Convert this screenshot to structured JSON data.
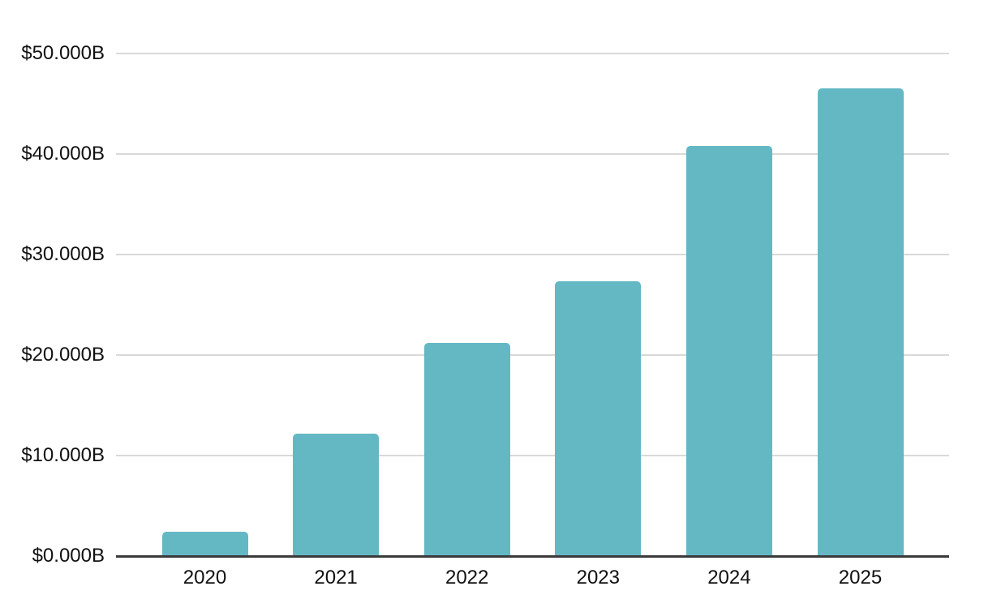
{
  "chart_data": {
    "type": "bar",
    "title": "",
    "xlabel": "",
    "ylabel": "",
    "legend": "none",
    "grid": true,
    "categories": [
      "2020",
      "2021",
      "2022",
      "2023",
      "2024",
      "2025"
    ],
    "series": [
      {
        "name": "value",
        "values": [
          2.4,
          12.2,
          21.2,
          27.3,
          40.8,
          46.5
        ]
      }
    ],
    "y_axis": {
      "min": 0,
      "max": 50,
      "tick_values": [
        0,
        10,
        20,
        30,
        40,
        50
      ],
      "tick_labels": [
        "$0.000B",
        "$10.000B",
        "$20.000B",
        "$30.000B",
        "$40.000B",
        "$50.000B"
      ]
    },
    "colors": {
      "bar": "#64b8c4",
      "gridline": "#d9d9d9",
      "axis_line": "#3b3b3b",
      "text": "#111111",
      "background": "#ffffff"
    }
  }
}
